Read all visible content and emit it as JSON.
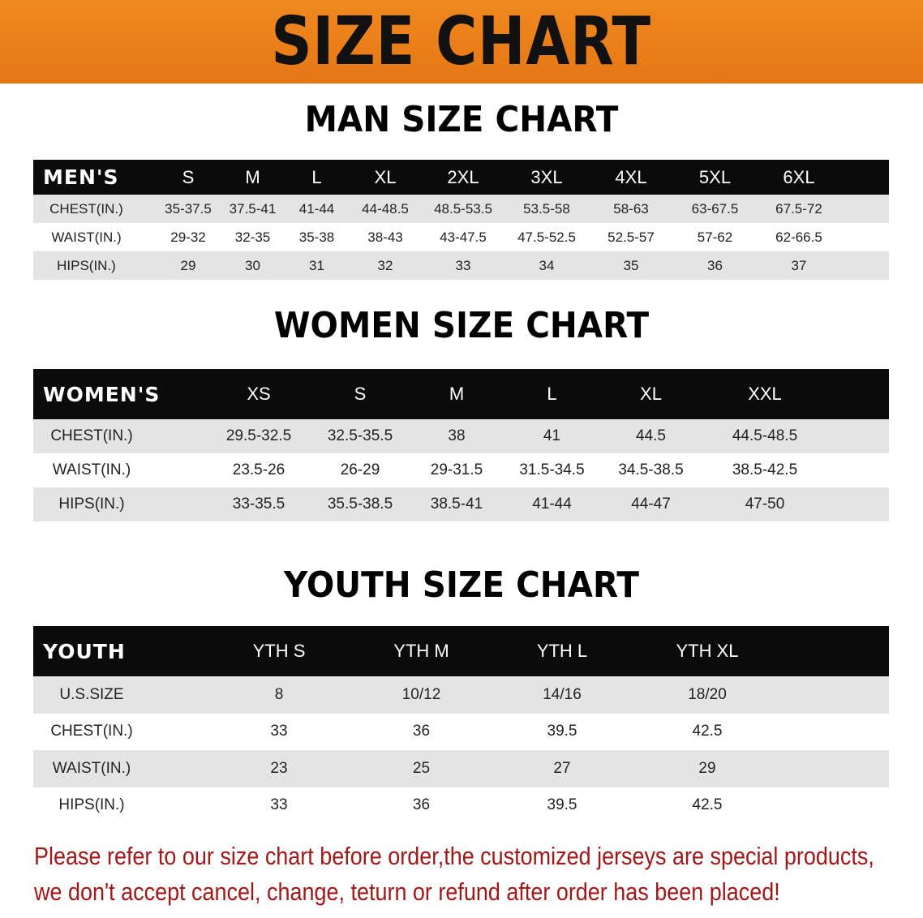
{
  "banner": {
    "title": "SIZE CHART",
    "color": "#e97f18"
  },
  "men": {
    "title": "MAN SIZE CHART",
    "header": [
      "MEN'S",
      "S",
      "M",
      "L",
      "XL",
      "2XL",
      "3XL",
      "4XL",
      "5XL",
      "6XL"
    ],
    "rows": [
      [
        "CHEST(IN.)",
        "35-37.5",
        "37.5-41",
        "41-44",
        "44-48.5",
        "48.5-53.5",
        "53.5-58",
        "58-63",
        "63-67.5",
        "67.5-72"
      ],
      [
        "WAIST(IN.)",
        "29-32",
        "32-35",
        "35-38",
        "38-43",
        "43-47.5",
        "47.5-52.5",
        "52.5-57",
        "57-62",
        "62-66.5"
      ],
      [
        "HIPS(IN.)",
        "29",
        "30",
        "31",
        "32",
        "33",
        "34",
        "35",
        "36",
        "37"
      ]
    ]
  },
  "women": {
    "title": "WOMEN SIZE CHART",
    "header": [
      "WOMEN'S",
      "XS",
      "S",
      "M",
      "L",
      "XL",
      "XXL"
    ],
    "rows": [
      [
        "CHEST(IN.)",
        "29.5-32.5",
        "32.5-35.5",
        "38",
        "41",
        "44.5",
        "44.5-48.5"
      ],
      [
        "WAIST(IN.)",
        "23.5-26",
        "26-29",
        "29-31.5",
        "31.5-34.5",
        "34.5-38.5",
        "38.5-42.5"
      ],
      [
        "HIPS(IN.)",
        "33-35.5",
        "35.5-38.5",
        "38.5-41",
        "41-44",
        "44-47",
        "47-50"
      ]
    ]
  },
  "youth": {
    "title": "YOUTH SIZE CHART",
    "header": [
      "YOUTH",
      "YTH S",
      "YTH M",
      "YTH L",
      "YTH XL"
    ],
    "rows": [
      [
        "U.S.SIZE",
        "8",
        "10/12",
        "14/16",
        "18/20"
      ],
      [
        "CHEST(IN.)",
        "33",
        "36",
        "39.5",
        "42.5"
      ],
      [
        "WAIST(IN.)",
        "23",
        "25",
        "27",
        "29"
      ],
      [
        "HIPS(IN.)",
        "33",
        "36",
        "39.5",
        "42.5"
      ]
    ]
  },
  "note": {
    "line1": "Please refer to our size chart before order,the customized jerseys are special products,",
    "line2": "we don't accept cancel, change, teturn or refund after order has been placed!",
    "color": "#a01818"
  }
}
